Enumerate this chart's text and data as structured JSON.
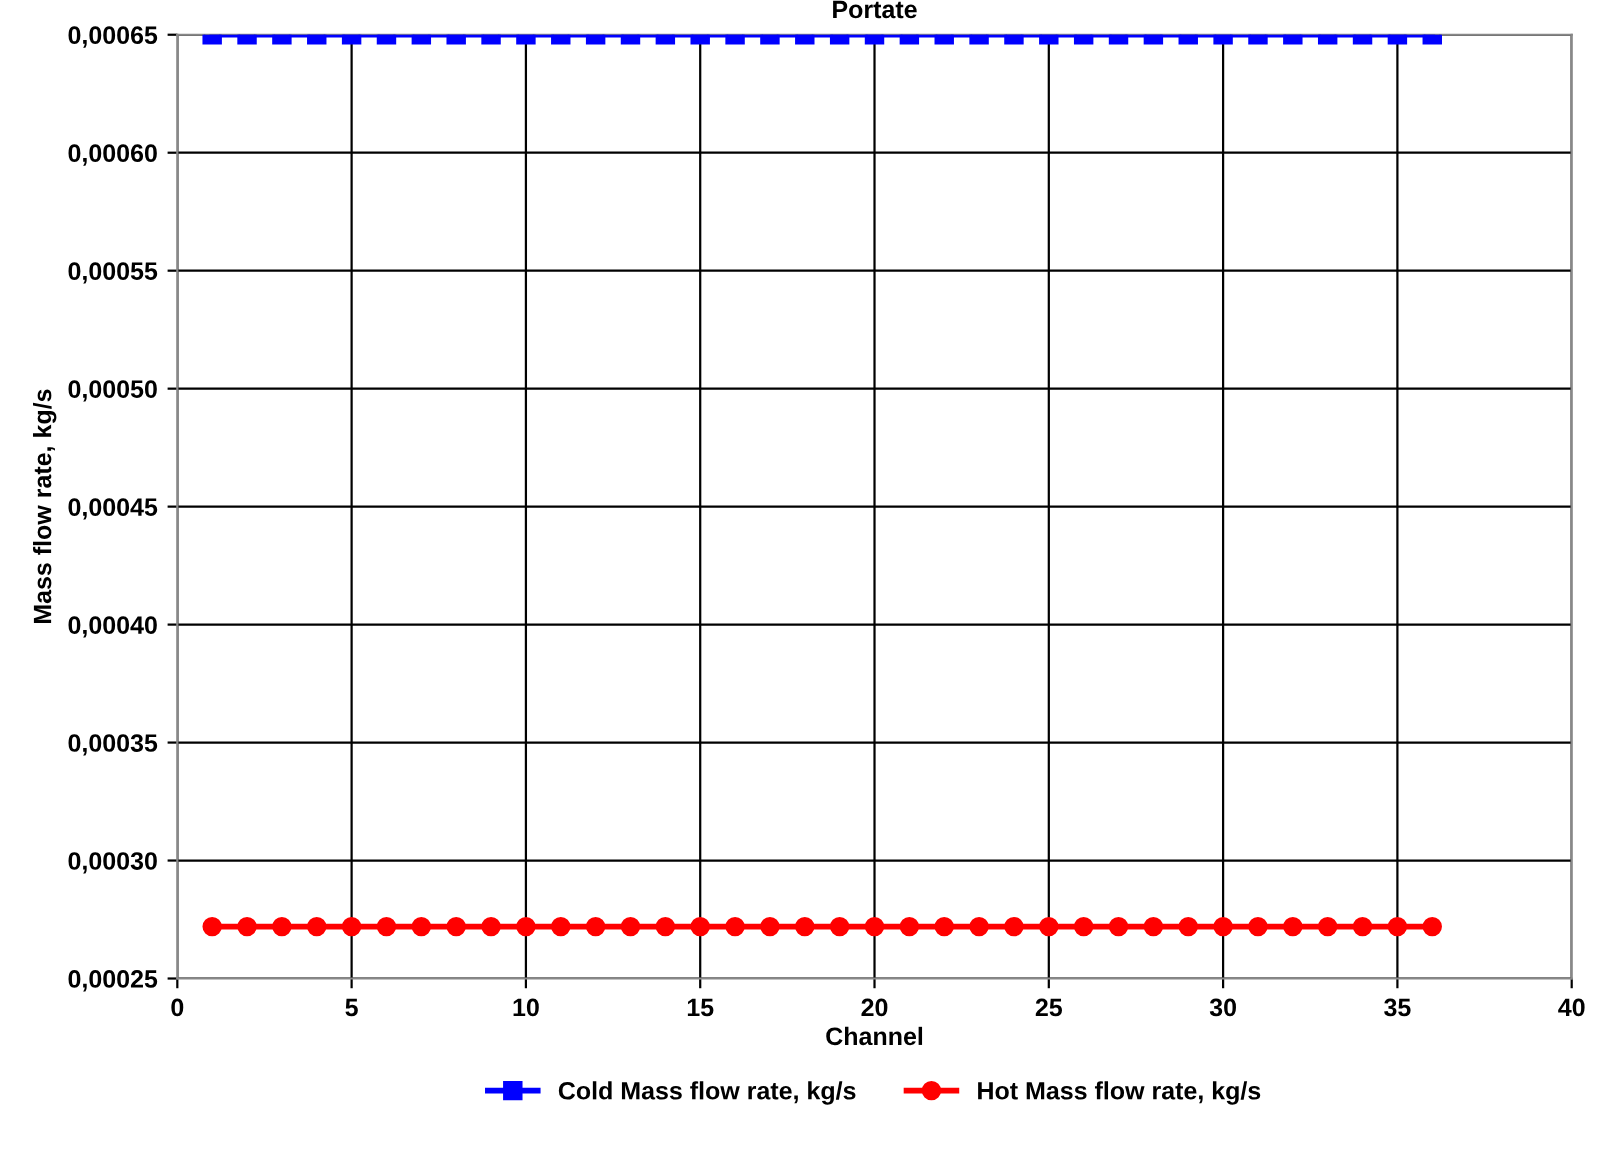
{
  "chart_data": {
    "type": "line",
    "title": "Portate",
    "xlabel": "Channel",
    "ylabel": "Mass flow rate, kg/s",
    "x": [
      1,
      2,
      3,
      4,
      5,
      6,
      7,
      8,
      9,
      10,
      11,
      12,
      13,
      14,
      15,
      16,
      17,
      18,
      19,
      20,
      21,
      22,
      23,
      24,
      25,
      26,
      27,
      28,
      29,
      30,
      31,
      32,
      33,
      34,
      35,
      36
    ],
    "series": [
      {
        "name": "Cold Mass flow rate, kg/s",
        "color": "#0000ff",
        "marker": "square",
        "values": [
          0.00065,
          0.00065,
          0.00065,
          0.00065,
          0.00065,
          0.00065,
          0.00065,
          0.00065,
          0.00065,
          0.00065,
          0.00065,
          0.00065,
          0.00065,
          0.00065,
          0.00065,
          0.00065,
          0.00065,
          0.00065,
          0.00065,
          0.00065,
          0.00065,
          0.00065,
          0.00065,
          0.00065,
          0.00065,
          0.00065,
          0.00065,
          0.00065,
          0.00065,
          0.00065,
          0.00065,
          0.00065,
          0.00065,
          0.00065,
          0.00065,
          0.00065
        ]
      },
      {
        "name": "Hot Mass flow rate, kg/s",
        "color": "#ff0000",
        "marker": "circle",
        "values": [
          0.000272,
          0.000272,
          0.000272,
          0.000272,
          0.000272,
          0.000272,
          0.000272,
          0.000272,
          0.000272,
          0.000272,
          0.000272,
          0.000272,
          0.000272,
          0.000272,
          0.000272,
          0.000272,
          0.000272,
          0.000272,
          0.000272,
          0.000272,
          0.000272,
          0.000272,
          0.000272,
          0.000272,
          0.000272,
          0.000272,
          0.000272,
          0.000272,
          0.000272,
          0.000272,
          0.000272,
          0.000272,
          0.000272,
          0.000272,
          0.000272,
          0.000272
        ]
      }
    ],
    "xlim": [
      0,
      40
    ],
    "xticks": [
      0,
      5,
      10,
      15,
      20,
      25,
      30,
      35,
      40
    ],
    "ylim": [
      0.00025,
      0.00065
    ],
    "yticks": [
      {
        "value": 0.00025,
        "label": "0,00025"
      },
      {
        "value": 0.0003,
        "label": "0,00030"
      },
      {
        "value": 0.00035,
        "label": "0,00035"
      },
      {
        "value": 0.0004,
        "label": "0,00040"
      },
      {
        "value": 0.00045,
        "label": "0,00045"
      },
      {
        "value": 0.0005,
        "label": "0,00050"
      },
      {
        "value": 0.00055,
        "label": "0,00055"
      },
      {
        "value": 0.0006,
        "label": "0,00060"
      },
      {
        "value": 0.00065,
        "label": "0,00065"
      }
    ],
    "grid": true,
    "legend": "bottom",
    "line_style": "solid"
  }
}
